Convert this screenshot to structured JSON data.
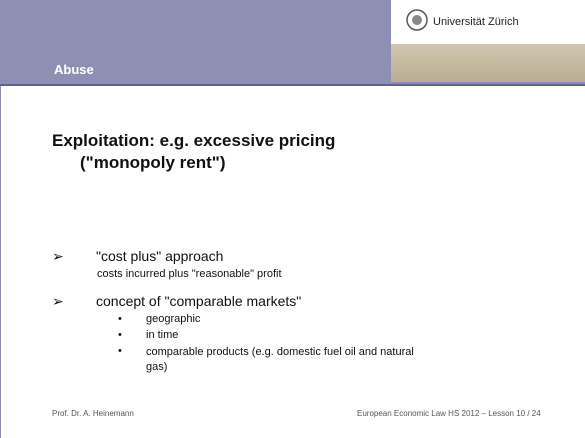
{
  "header": {
    "section": "Abuse",
    "university": "Universität Zürich"
  },
  "title": {
    "line1": "Exploitation: e.g. excessive pricing",
    "line2": "(\"monopoly rent\")"
  },
  "bullets": [
    {
      "marker": "➢",
      "text": "\"cost plus\" approach",
      "sub": [
        "costs incurred plus \"reasonable\" profit"
      ]
    },
    {
      "marker": "➢",
      "text": "concept of \"comparable markets\"",
      "items": [
        "geographic",
        "in time",
        "comparable products (e.g. domestic fuel oil and natural gas)"
      ]
    }
  ],
  "footer": {
    "left": "Prof. Dr. A. Heinemann",
    "right": "European Economic Law HS 2012 – Lesson 10  /  24"
  }
}
